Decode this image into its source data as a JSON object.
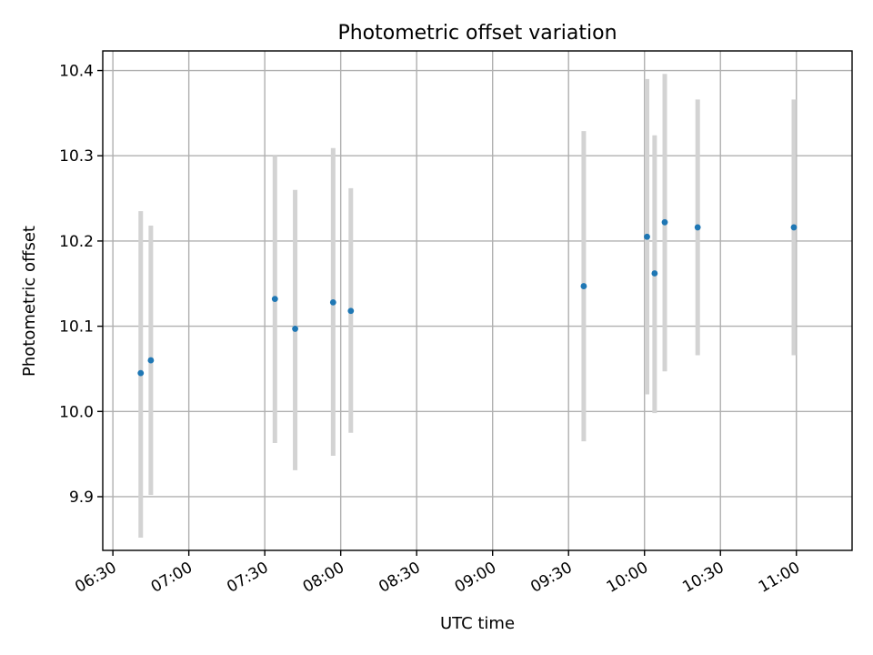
{
  "chart_data": {
    "type": "scatter",
    "title": "Photometric offset variation",
    "xlabel": "UTC time",
    "ylabel": "Photometric offset",
    "x_axis_type": "time",
    "xlim": [
      "06:26",
      "11:22"
    ],
    "ylim": [
      9.837,
      10.423
    ],
    "xticks": [
      "06:30",
      "07:00",
      "07:30",
      "08:00",
      "08:30",
      "09:00",
      "09:30",
      "10:00",
      "10:30",
      "11:00"
    ],
    "yticks": [
      9.9,
      10.0,
      10.1,
      10.2,
      10.3,
      10.4
    ],
    "ytick_labels": [
      "9.9",
      "10.0",
      "10.1",
      "10.2",
      "10.3",
      "10.4"
    ],
    "grid": true,
    "legend": "none",
    "series": [
      {
        "marker_color": "#1f77b4",
        "errorbar_color": "#d3d3d3",
        "points": [
          {
            "x": "06:41",
            "y": 10.045,
            "ylo": 9.852,
            "yhi": 10.235
          },
          {
            "x": "06:45",
            "y": 10.06,
            "ylo": 9.902,
            "yhi": 10.218
          },
          {
            "x": "07:34",
            "y": 10.132,
            "ylo": 9.963,
            "yhi": 10.3
          },
          {
            "x": "07:42",
            "y": 10.097,
            "ylo": 9.931,
            "yhi": 10.26
          },
          {
            "x": "07:57",
            "y": 10.128,
            "ylo": 9.948,
            "yhi": 10.309
          },
          {
            "x": "08:04",
            "y": 10.118,
            "ylo": 9.975,
            "yhi": 10.262
          },
          {
            "x": "09:36",
            "y": 10.147,
            "ylo": 9.965,
            "yhi": 10.329
          },
          {
            "x": "10:01",
            "y": 10.205,
            "ylo": 10.02,
            "yhi": 10.39
          },
          {
            "x": "10:04",
            "y": 10.162,
            "ylo": 9.998,
            "yhi": 10.324
          },
          {
            "x": "10:08",
            "y": 10.222,
            "ylo": 10.047,
            "yhi": 10.396
          },
          {
            "x": "10:21",
            "y": 10.216,
            "ylo": 10.066,
            "yhi": 10.366
          },
          {
            "x": "10:59",
            "y": 10.216,
            "ylo": 10.066,
            "yhi": 10.366
          }
        ]
      }
    ]
  }
}
